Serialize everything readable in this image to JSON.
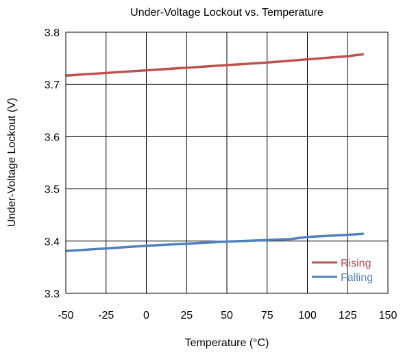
{
  "chart_data": {
    "type": "line",
    "title": "Under-Voltage Lockout vs. Temperature",
    "xlabel": "Temperature (°C)",
    "ylabel": "Under-Voltage Lockout (V)",
    "xlim": [
      -50,
      150
    ],
    "ylim": [
      3.3,
      3.8
    ],
    "x_ticks": [
      -50,
      -25,
      0,
      25,
      50,
      75,
      100,
      125,
      150
    ],
    "x_tick_labels": [
      "-50",
      "-25",
      "0",
      "25",
      "50",
      "75",
      "100",
      "125",
      "150"
    ],
    "y_ticks": [
      3.3,
      3.4,
      3.5,
      3.6,
      3.7,
      3.8
    ],
    "y_tick_labels": [
      "3.3",
      "3.4",
      "3.5",
      "3.6",
      "3.7",
      "3.8"
    ],
    "grid": true,
    "legend_position": "bottom-right",
    "series": [
      {
        "name": "Rising",
        "color": "#c0504d",
        "x": [
          -50,
          -25,
          0,
          25,
          50,
          75,
          100,
          125,
          135
        ],
        "y": [
          3.717,
          3.722,
          3.727,
          3.732,
          3.737,
          3.742,
          3.748,
          3.754,
          3.758
        ]
      },
      {
        "name": "Falling",
        "color": "#4f81bd",
        "x": [
          -50,
          -25,
          0,
          25,
          50,
          75,
          90,
          100,
          125,
          135
        ],
        "y": [
          3.381,
          3.386,
          3.391,
          3.395,
          3.399,
          3.402,
          3.404,
          3.408,
          3.412,
          3.414
        ]
      }
    ]
  }
}
